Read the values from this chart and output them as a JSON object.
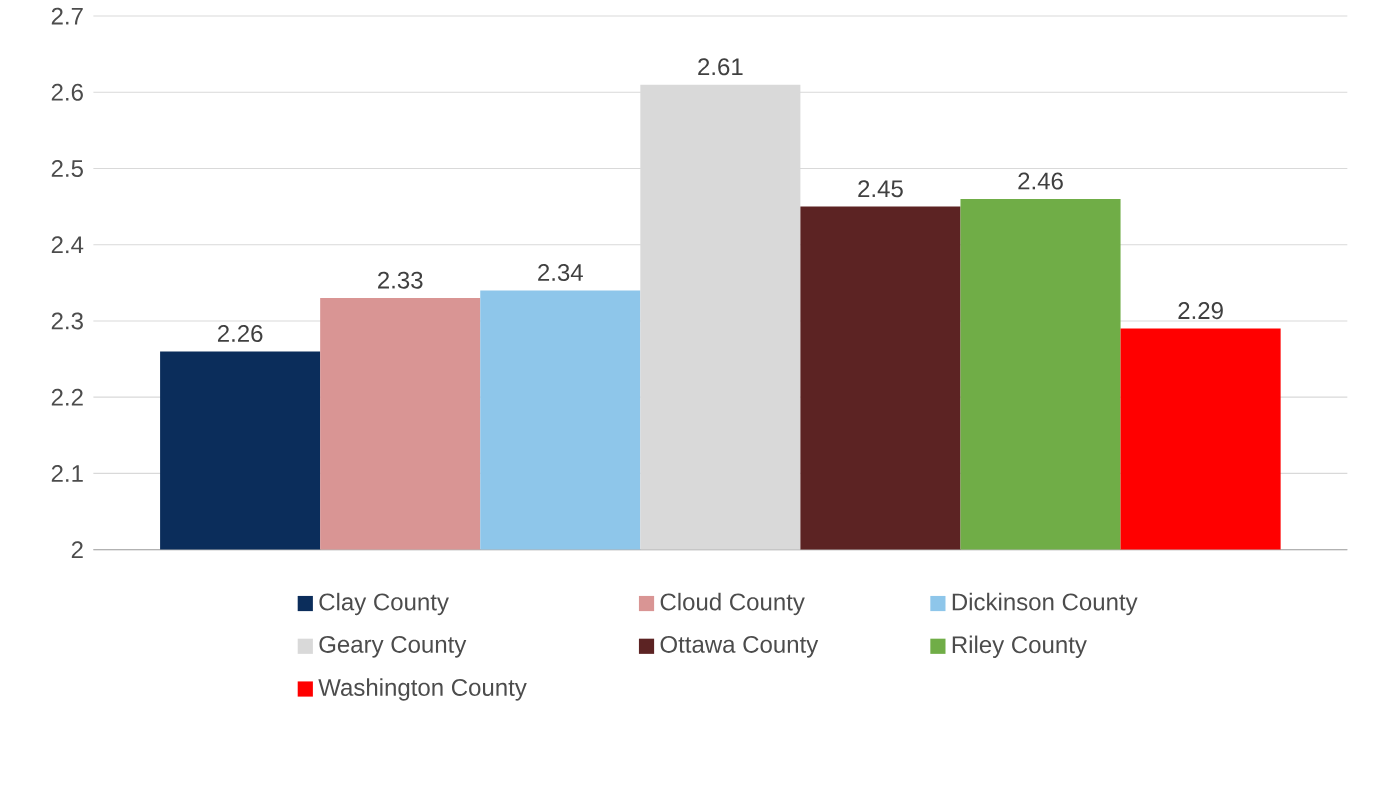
{
  "chart_data": {
    "type": "bar",
    "categories": [
      null
    ],
    "series": [
      {
        "name": "Clay County",
        "color": "#0b2d5b",
        "values": [
          2.26
        ]
      },
      {
        "name": "Cloud County",
        "color": "#d99594",
        "values": [
          2.33
        ]
      },
      {
        "name": "Dickinson County",
        "color": "#8ec6ea",
        "values": [
          2.34
        ]
      },
      {
        "name": "Geary County",
        "color": "#d9d9d9",
        "values": [
          2.61
        ]
      },
      {
        "name": "Ottawa County",
        "color": "#5c2323",
        "values": [
          2.45
        ]
      },
      {
        "name": "Riley County",
        "color": "#70ad47",
        "values": [
          2.46
        ]
      },
      {
        "name": "Washington County",
        "color": "#ff0000",
        "values": [
          2.29
        ]
      }
    ],
    "ylim": [
      2,
      2.7
    ],
    "yticks": [
      2,
      2.1,
      2.2,
      2.3,
      2.4,
      2.5,
      2.6,
      2.7
    ],
    "grid": "y",
    "legend": "bottom",
    "data_labels": true
  }
}
